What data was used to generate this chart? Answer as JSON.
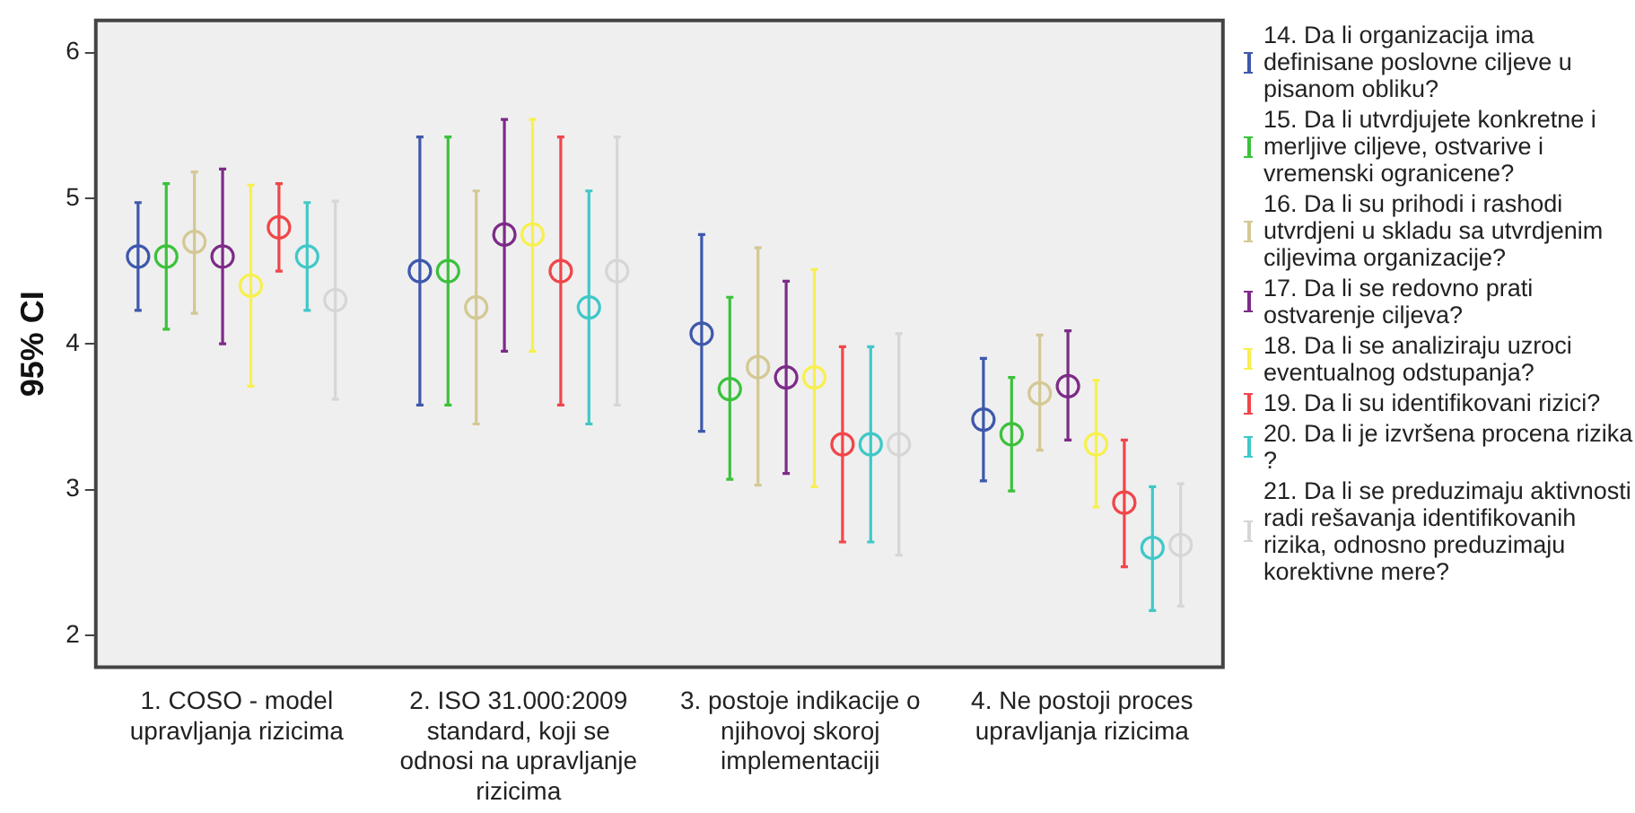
{
  "chart_data": {
    "type": "scatter",
    "ylabel": "95% CI",
    "categories": [
      "1. COSO - model upravljanja rizicima",
      "2. ISO 31.000:2009 standard, koji se odnosi na upravljanje rizicima",
      "3. postoje indikacije o njihovoj skoroj implementaciji",
      "4. Ne postoji proces upravljanja rizicima"
    ],
    "series": [
      {
        "name": "14. Da li organizacija ima definisane poslovne ciljeve u pisanom obliku?",
        "color": "#3e58ac",
        "values": [
          4.6,
          4.5,
          4.07,
          3.48
        ],
        "errors": [
          [
            4.23,
            4.97
          ],
          [
            3.58,
            5.42
          ],
          [
            3.4,
            4.75
          ],
          [
            3.06,
            3.9
          ]
        ]
      },
      {
        "name": "15. Da li utvrdjujete konkretne i merljive ciljeve, ostvarive i vremenski ogranicene?",
        "color": "#3cc13c",
        "values": [
          4.6,
          4.5,
          3.69,
          3.38
        ],
        "errors": [
          [
            4.1,
            5.1
          ],
          [
            3.58,
            5.42
          ],
          [
            3.07,
            4.32
          ],
          [
            2.99,
            3.77
          ]
        ]
      },
      {
        "name": "16. Da li su prihodi i rashodi utvrdjeni u skladu sa utvrdjenim ciljevima organizacije?",
        "color": "#d4c894",
        "values": [
          4.7,
          4.25,
          3.84,
          3.66
        ],
        "errors": [
          [
            4.21,
            5.18
          ],
          [
            3.45,
            5.05
          ],
          [
            3.03,
            4.66
          ],
          [
            3.27,
            4.06
          ]
        ]
      },
      {
        "name": "17. Da li se redovno prati ostvarenje ciljeva?",
        "color": "#7d2b88",
        "values": [
          4.6,
          4.75,
          3.77,
          3.71
        ],
        "errors": [
          [
            4.0,
            5.2
          ],
          [
            3.95,
            5.54
          ],
          [
            3.11,
            4.43
          ],
          [
            3.34,
            4.09
          ]
        ]
      },
      {
        "name": "18. Da li se analiziraju uzroci eventualnog odstupanja?",
        "color": "#f7f04f",
        "values": [
          4.4,
          4.75,
          3.77,
          3.31
        ],
        "errors": [
          [
            3.71,
            5.09
          ],
          [
            3.95,
            5.54
          ],
          [
            3.02,
            4.51
          ],
          [
            2.88,
            3.75
          ]
        ]
      },
      {
        "name": "19. Da li su identifikovani rizici?",
        "color": "#f0464a",
        "values": [
          4.8,
          4.5,
          3.31,
          2.91
        ],
        "errors": [
          [
            4.5,
            5.1
          ],
          [
            3.58,
            5.42
          ],
          [
            2.64,
            3.98
          ],
          [
            2.47,
            3.34
          ]
        ]
      },
      {
        "name": "20. Da li je izvršena procena rizika ?",
        "color": "#40c8c8",
        "values": [
          4.6,
          4.25,
          3.31,
          2.6
        ],
        "errors": [
          [
            4.23,
            4.97
          ],
          [
            3.45,
            5.05
          ],
          [
            2.64,
            3.98
          ],
          [
            2.17,
            3.02
          ]
        ]
      },
      {
        "name": "21. Da li se preduzimaju aktivnosti  radi rešavanja identifikovanih rizika, odnosno preduzimaju korektivne mere?",
        "color": "#d6d6d6",
        "values": [
          4.3,
          4.5,
          3.31,
          2.62
        ],
        "errors": [
          [
            3.62,
            4.98
          ],
          [
            3.58,
            5.42
          ],
          [
            2.55,
            4.07
          ],
          [
            2.2,
            3.04
          ]
        ]
      }
    ],
    "ylim": [
      1.78,
      6.22
    ],
    "yticks": [
      2,
      3,
      4,
      5,
      6
    ],
    "marker": "circle",
    "legend": "right"
  }
}
